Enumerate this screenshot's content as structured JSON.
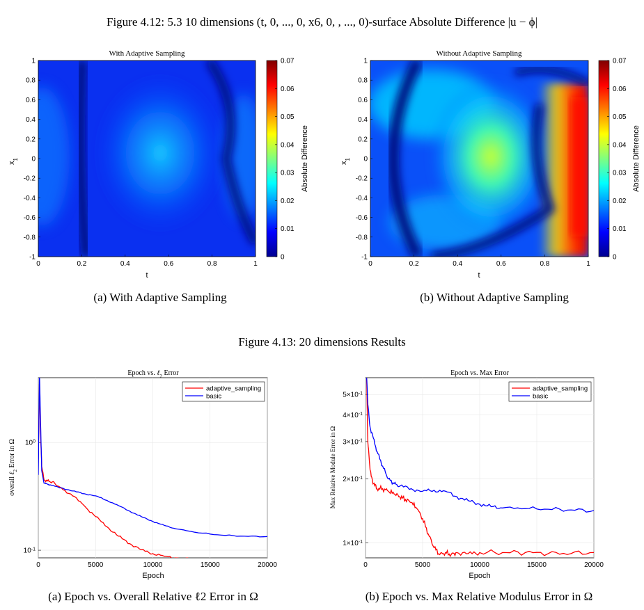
{
  "figure_412": {
    "title": "Figure 4.12: 5.3 10 dimensions (t, 0, ..., 0, x6, 0, , ..., 0)-surface Absolute Difference |u − ϕ|",
    "caption_a": "(a) With Adaptive Sampling",
    "caption_b": "(b) Without Adaptive Sampling"
  },
  "figure_413": {
    "title": "Figure 4.13: 20 dimensions Results",
    "caption_a": "(a) Epoch vs. Overall Relative ℓ2 Error in Ω",
    "caption_b": "(b) Epoch vs. Max Relative Modulus Error in Ω"
  },
  "chart_data": [
    {
      "type": "heatmap",
      "title": "With Adaptive Sampling",
      "xlabel": "t",
      "ylabel": "x1",
      "xticks": [
        "0",
        "0.2",
        "0.4",
        "0.6",
        "0.8",
        "1"
      ],
      "yticks": [
        "1",
        "0.8",
        "0.6",
        "0.4",
        "0.2",
        "0",
        "-0.2",
        "-0.4",
        "-0.6",
        "-0.8",
        "-1"
      ],
      "xlim": [
        0,
        1
      ],
      "ylim": [
        -1,
        1
      ],
      "colorbar_label": "Absolute Difference",
      "colorbar_ticks": [
        "0.07",
        "0.06",
        "0.05",
        "0.04",
        "0.03",
        "0.02",
        "0.01",
        "0"
      ],
      "clim": [
        0,
        0.07
      ],
      "colormap": "jet",
      "peak_value": 0.03
    },
    {
      "type": "heatmap",
      "title": "Without Adaptive Sampling",
      "xlabel": "t",
      "ylabel": "x1",
      "xticks": [
        "0",
        "0.2",
        "0.4",
        "0.6",
        "0.8",
        "1"
      ],
      "yticks": [
        "1",
        "0.8",
        "0.6",
        "0.4",
        "0.2",
        "0",
        "-0.2",
        "-0.4",
        "-0.6",
        "-0.8",
        "-1"
      ],
      "xlim": [
        0,
        1
      ],
      "ylim": [
        -1,
        1
      ],
      "colorbar_label": "Absolute Difference",
      "colorbar_ticks": [
        "0.07",
        "0.06",
        "0.05",
        "0.04",
        "0.03",
        "0.02",
        "0.01",
        "0"
      ],
      "clim": [
        0,
        0.07
      ],
      "colormap": "jet",
      "peak_value": 0.066
    },
    {
      "type": "line",
      "title": "Epoch vs. ℓ2 Error",
      "xlabel": "Epoch",
      "ylabel": "overall ℓ2 Error in Ω",
      "yscale": "log",
      "xlim": [
        0,
        20000
      ],
      "ylim": [
        0.085,
        4
      ],
      "xticks": [
        "0",
        "5000",
        "10000",
        "15000",
        "20000"
      ],
      "yticks": [
        {
          "value": 1,
          "label": "10^0"
        },
        {
          "value": 0.1,
          "label": "10^-1"
        }
      ],
      "legend_position": "top-right",
      "series": [
        {
          "name": "adaptive_sampling",
          "color": "#ff0000",
          "x": [
            0,
            100,
            200,
            300,
            500,
            800,
            1200,
            2000,
            3000,
            4000,
            5000,
            6000,
            7000,
            8000,
            9000,
            10000,
            11000,
            12000,
            14000,
            16000,
            18000,
            20000
          ],
          "y": [
            0.7,
            3.5,
            1.2,
            0.6,
            0.45,
            0.44,
            0.43,
            0.38,
            0.32,
            0.26,
            0.205,
            0.165,
            0.135,
            0.115,
            0.101,
            0.093,
            0.088,
            0.085,
            0.081,
            0.079,
            0.078,
            0.078
          ]
        },
        {
          "name": "basic",
          "color": "#0000ff",
          "x": [
            0,
            100,
            200,
            300,
            500,
            800,
            1200,
            2000,
            3000,
            4000,
            5000,
            6000,
            7000,
            8000,
            9000,
            10000,
            11000,
            12000,
            14000,
            16000,
            18000,
            20000
          ],
          "y": [
            0.5,
            4.5,
            1.5,
            0.55,
            0.42,
            0.41,
            0.4,
            0.38,
            0.355,
            0.335,
            0.32,
            0.29,
            0.26,
            0.23,
            0.205,
            0.185,
            0.17,
            0.158,
            0.145,
            0.138,
            0.135,
            0.134
          ]
        }
      ]
    },
    {
      "type": "line",
      "title": "Epoch vs. Max Error",
      "xlabel": "Epoch",
      "ylabel": "Max Relative Module Error in Ω",
      "yscale": "log",
      "xlim": [
        0,
        20000
      ],
      "ylim": [
        0.085,
        0.6
      ],
      "xticks": [
        "0",
        "5000",
        "10000",
        "15000",
        "20000"
      ],
      "yticks": [
        {
          "value": 0.5,
          "label": "5×10^-1"
        },
        {
          "value": 0.4,
          "label": "4×10^-1"
        },
        {
          "value": 0.3,
          "label": "3×10^-1"
        },
        {
          "value": 0.2,
          "label": "2×10^-1"
        },
        {
          "value": 0.1,
          "label": "1×10^-1"
        }
      ],
      "legend_position": "top-right",
      "series": [
        {
          "name": "adaptive_sampling",
          "color": "#ff0000",
          "x": [
            0,
            100,
            200,
            400,
            700,
            1000,
            1500,
            2000,
            2500,
            3000,
            3500,
            4000,
            4500,
            5000,
            5500,
            6000,
            6500,
            7000,
            7500,
            8000,
            9000,
            10000,
            12000,
            14000,
            16000,
            18000,
            20000
          ],
          "y": [
            0.8,
            0.6,
            0.3,
            0.22,
            0.19,
            0.18,
            0.18,
            0.175,
            0.17,
            0.165,
            0.16,
            0.155,
            0.145,
            0.13,
            0.11,
            0.095,
            0.088,
            0.09,
            0.088,
            0.09,
            0.089,
            0.09,
            0.09,
            0.09,
            0.089,
            0.089,
            0.09
          ]
        },
        {
          "name": "basic",
          "color": "#0000ff",
          "x": [
            0,
            100,
            200,
            400,
            700,
            1000,
            1500,
            2000,
            2500,
            3000,
            4000,
            5000,
            6000,
            7000,
            8000,
            9000,
            10000,
            11000,
            12000,
            14000,
            16000,
            18000,
            20000
          ],
          "y": [
            0.8,
            0.6,
            0.45,
            0.35,
            0.31,
            0.27,
            0.23,
            0.2,
            0.19,
            0.185,
            0.18,
            0.175,
            0.177,
            0.175,
            0.165,
            0.158,
            0.152,
            0.148,
            0.146,
            0.145,
            0.144,
            0.143,
            0.142
          ]
        }
      ]
    }
  ]
}
